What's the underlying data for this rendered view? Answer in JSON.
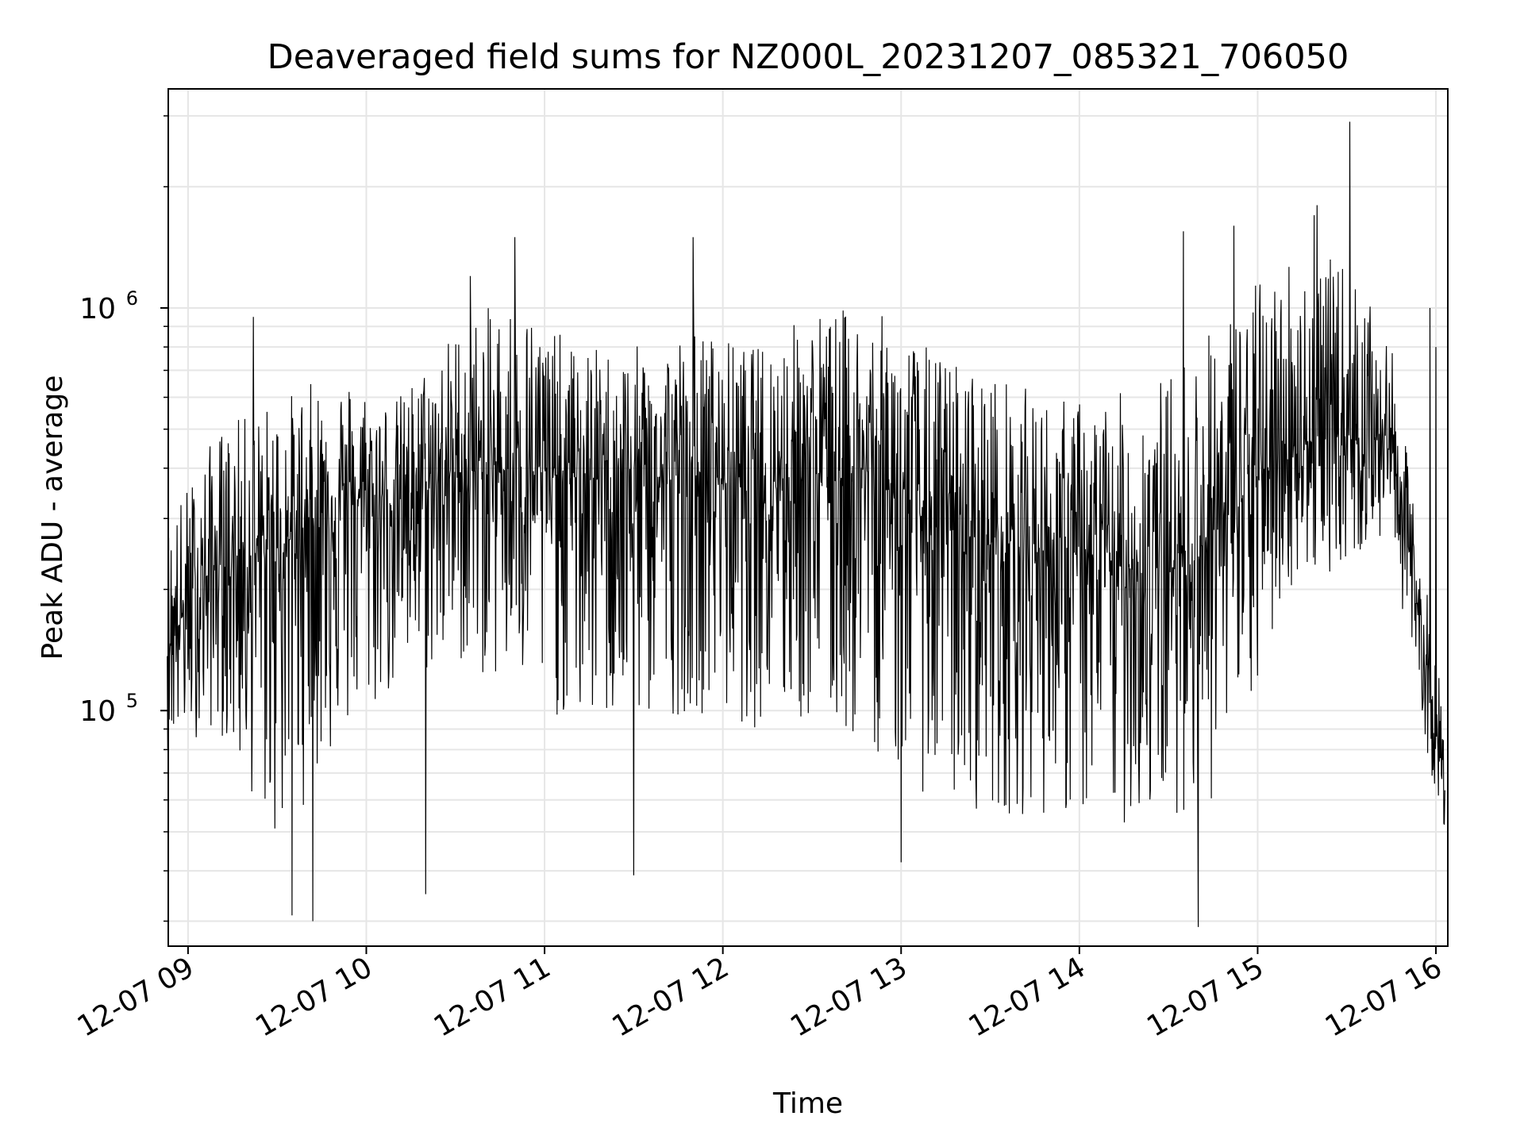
{
  "chart_data": {
    "type": "line",
    "title": "Deaveraged field sums for NZ000L_20231207_085321_706050",
    "xlabel": "Time",
    "ylabel": "Peak ADU - average",
    "yscale": "log",
    "ylim": [
      26000,
      3500000
    ],
    "xlim": [
      "2023-12-07 08:53:21",
      "2023-12-07 16:04:00"
    ],
    "x_ticks": [
      {
        "value": "2023-12-07 09:00",
        "label": "12-07 09"
      },
      {
        "value": "2023-12-07 10:00",
        "label": "12-07 10"
      },
      {
        "value": "2023-12-07 11:00",
        "label": "12-07 11"
      },
      {
        "value": "2023-12-07 12:00",
        "label": "12-07 12"
      },
      {
        "value": "2023-12-07 13:00",
        "label": "12-07 13"
      },
      {
        "value": "2023-12-07 14:00",
        "label": "12-07 14"
      },
      {
        "value": "2023-12-07 15:00",
        "label": "12-07 15"
      },
      {
        "value": "2023-12-07 16:00",
        "label": "12-07 16"
      }
    ],
    "y_ticks": [
      {
        "value": 100000,
        "base": "10",
        "exp": "5"
      },
      {
        "value": 1000000,
        "base": "10",
        "exp": "6"
      }
    ],
    "grid": true,
    "line_color": "#000000",
    "grid_color": "#e6e6e6",
    "series": [
      {
        "values_description_note_removed": null,
        "x": [
          "2023-12-07 08:53",
          "2023-12-07 09:10",
          "2023-12-07 09:30",
          "2023-12-07 09:50",
          "2023-12-07 10:10",
          "2023-12-07 10:30",
          "2023-12-07 10:50",
          "2023-12-07 11:10",
          "2023-12-07 11:30",
          "2023-12-07 11:50",
          "2023-12-07 12:10",
          "2023-12-07 12:30",
          "2023-12-07 12:50",
          "2023-12-07 13:10",
          "2023-12-07 13:30",
          "2023-12-07 13:50",
          "2023-12-07 14:10",
          "2023-12-07 14:30",
          "2023-12-07 14:50",
          "2023-12-07 15:10",
          "2023-12-07 15:30",
          "2023-12-07 15:45",
          "2023-12-07 15:55",
          "2023-12-07 16:03"
        ],
        "y": [
          150000,
          230000,
          250000,
          340000,
          330000,
          390000,
          400000,
          380000,
          370000,
          380000,
          380000,
          400000,
          390000,
          290000,
          260000,
          250000,
          230000,
          220000,
          300000,
          460000,
          480000,
          480000,
          160000,
          60000
        ],
        "y_low": [
          80000,
          90000,
          45000,
          80000,
          110000,
          130000,
          110000,
          90000,
          90000,
          100000,
          90000,
          90000,
          80000,
          60000,
          55000,
          55000,
          50000,
          55000,
          60000,
          200000,
          230000,
          270000,
          90000,
          50000
        ],
        "y_high": [
          300000,
          500000,
          600000,
          700000,
          600000,
          900000,
          1100000,
          800000,
          800000,
          900000,
          800000,
          1000000,
          1000000,
          800000,
          700000,
          600000,
          600000,
          700000,
          1000000,
          1400000,
          1300000,
          800000,
          250000,
          100000
        ],
        "spikes": [
          [
            "2023-12-07 09:22",
            950000
          ],
          [
            "2023-12-07 10:35",
            1200000
          ],
          [
            "2023-12-07 10:50",
            1500000
          ],
          [
            "2023-12-07 11:50",
            1500000
          ],
          [
            "2023-12-07 14:35",
            1550000
          ],
          [
            "2023-12-07 14:52",
            1600000
          ],
          [
            "2023-12-07 15:20",
            1800000
          ],
          [
            "2023-12-07 15:19",
            1700000
          ],
          [
            "2023-12-07 15:31",
            2900000
          ],
          [
            "2023-12-07 15:58",
            1000000
          ],
          [
            "2023-12-07 16:00",
            800000
          ],
          [
            "2023-12-07 09:35",
            31000
          ],
          [
            "2023-12-07 09:42",
            30000
          ],
          [
            "2023-12-07 14:40",
            29000
          ],
          [
            "2023-12-07 11:30",
            39000
          ],
          [
            "2023-12-07 13:00",
            42000
          ],
          [
            "2023-12-07 10:20",
            35000
          ]
        ]
      }
    ]
  }
}
